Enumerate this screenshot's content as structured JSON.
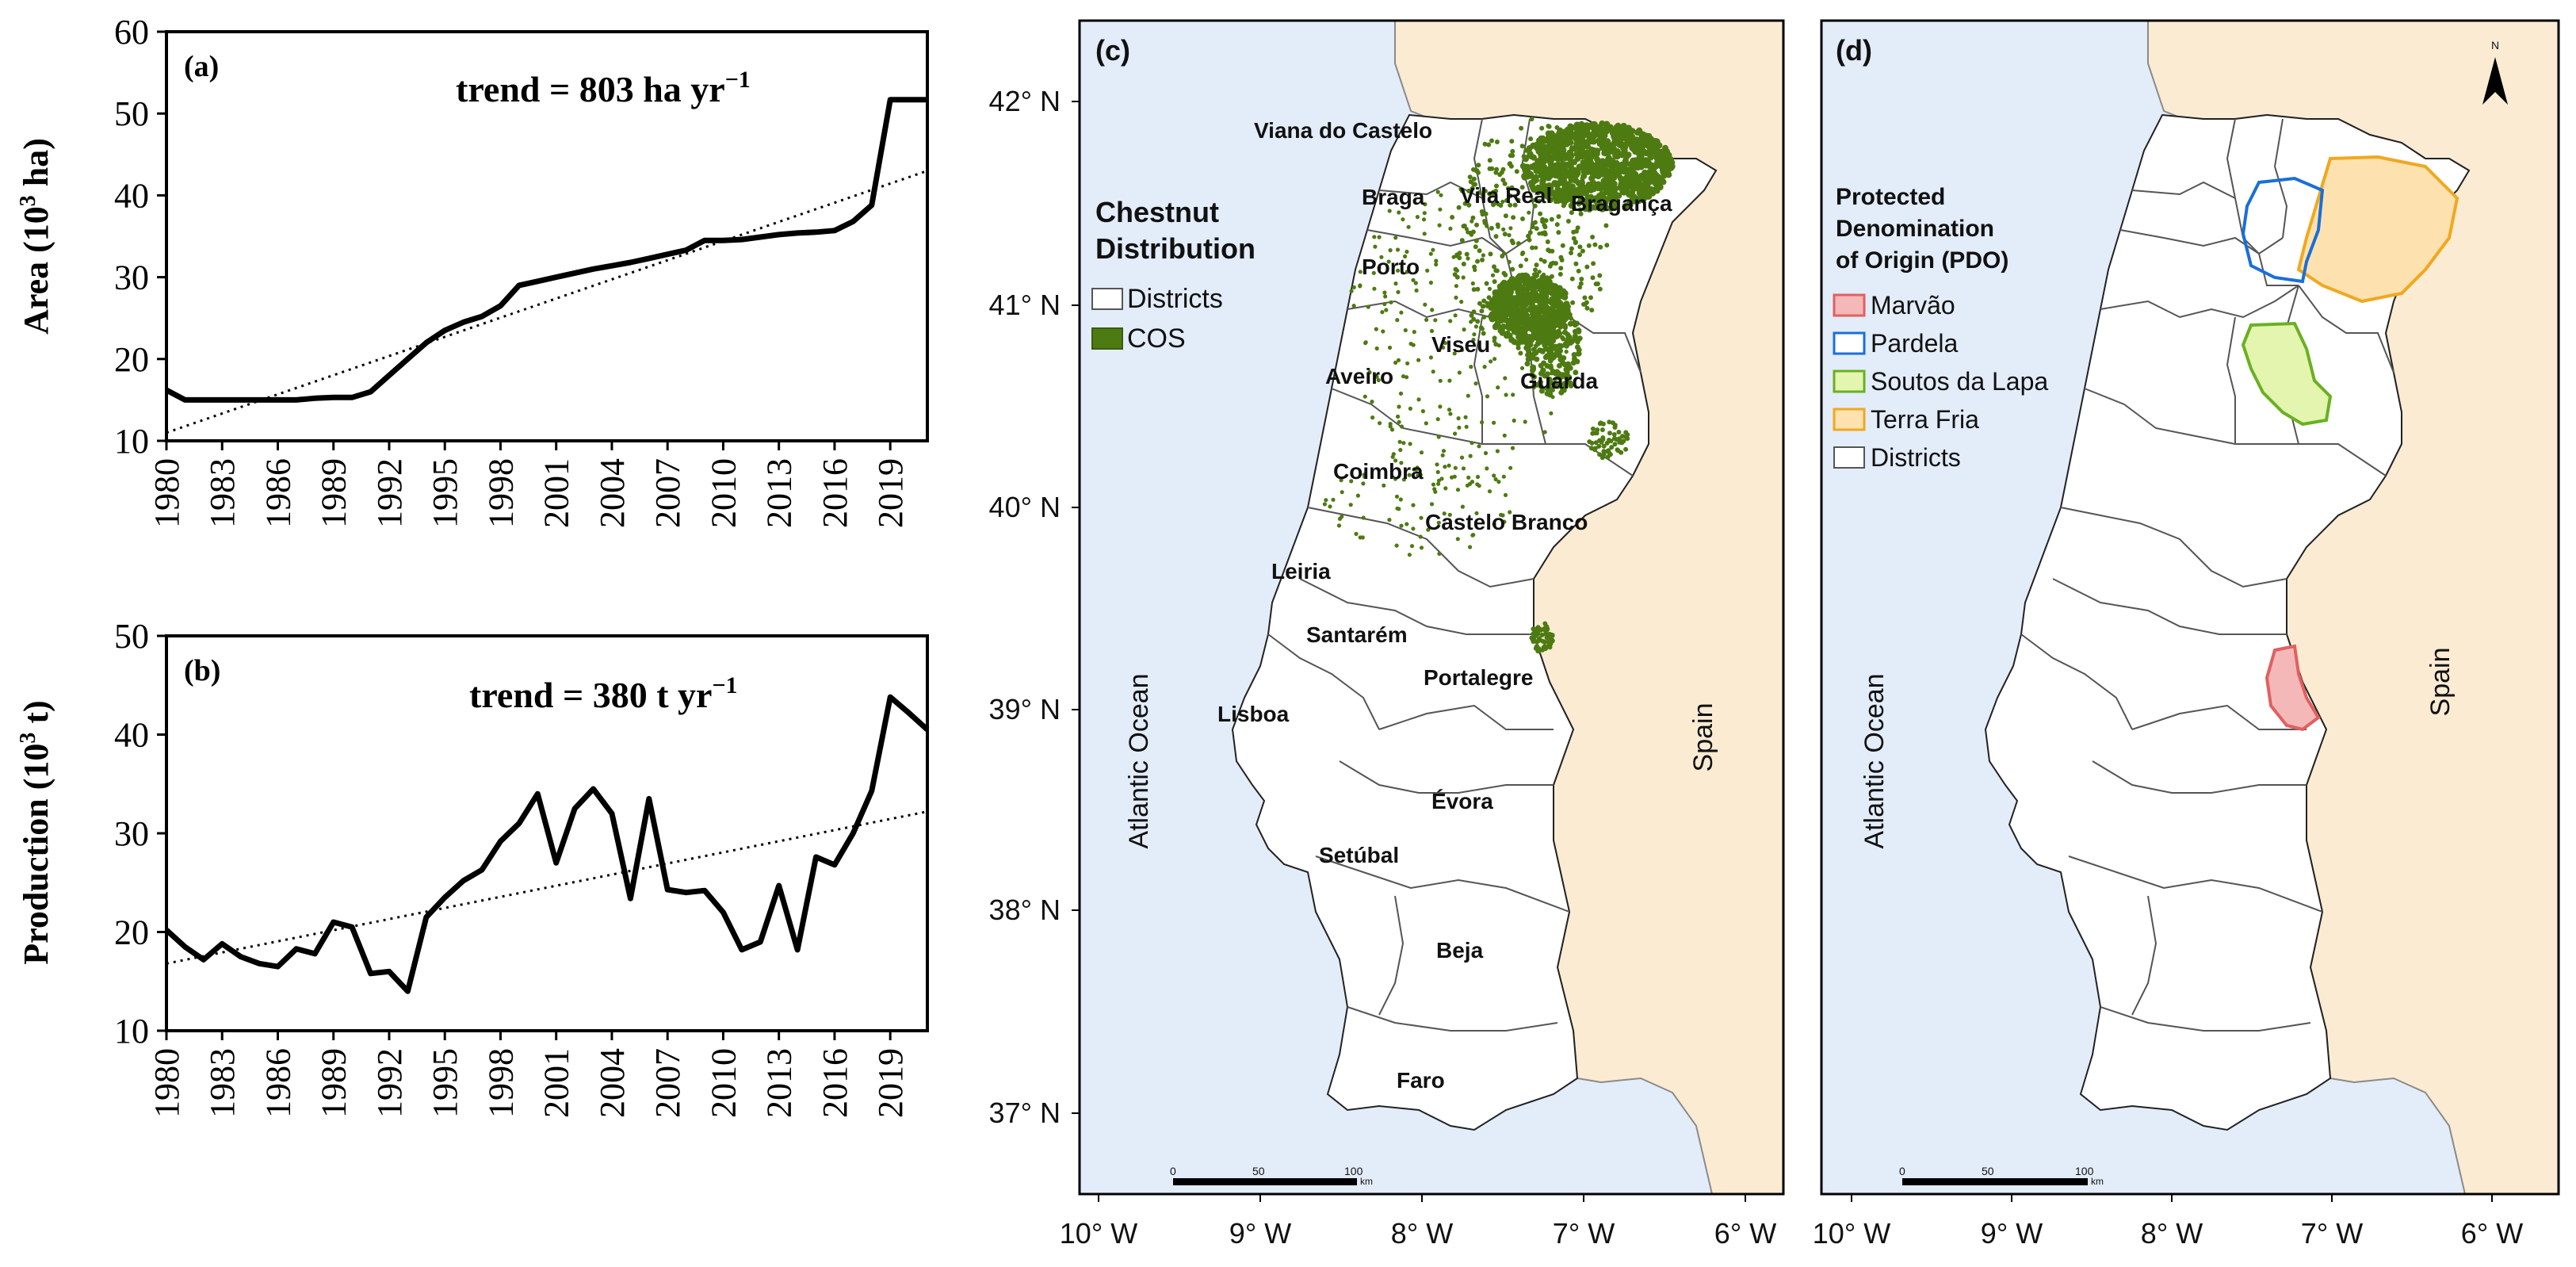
{
  "chart_data": [
    {
      "type": "line",
      "panel": "(a)",
      "annotation": "trend = 803 ha yr",
      "annotation_sup": "−1",
      "ylabel": "Area (10",
      "ylabel_sup": "3",
      "ylabel_end": " ha)",
      "ylim": [
        10,
        60
      ],
      "yticks": [
        10,
        20,
        30,
        40,
        50,
        60
      ],
      "xlim": [
        1980,
        2021
      ],
      "xticks": [
        1980,
        1983,
        1986,
        1989,
        1992,
        1995,
        1998,
        2001,
        2004,
        2007,
        2010,
        2013,
        2016,
        2019
      ],
      "series": [
        {
          "name": "Area",
          "x": [
            1980,
            1981,
            1982,
            1983,
            1984,
            1985,
            1986,
            1987,
            1988,
            1989,
            1990,
            1991,
            1992,
            1993,
            1994,
            1995,
            1996,
            1997,
            1998,
            1999,
            2000,
            2001,
            2002,
            2003,
            2004,
            2005,
            2006,
            2007,
            2008,
            2009,
            2010,
            2011,
            2012,
            2013,
            2014,
            2015,
            2016,
            2017,
            2018,
            2019,
            2020,
            2021
          ],
          "values": [
            16.2,
            15,
            15,
            15,
            15,
            15,
            15,
            15,
            15.2,
            15.3,
            15.3,
            16,
            18,
            20,
            22,
            23.5,
            24.5,
            25.2,
            26.5,
            29,
            29.5,
            30,
            30.5,
            31,
            31.4,
            31.8,
            32.3,
            32.8,
            33.3,
            34.5,
            34.5,
            34.6,
            34.9,
            35.2,
            35.4,
            35.5,
            35.7,
            36.8,
            38.8,
            51.7,
            51.7,
            51.7
          ]
        },
        {
          "name": "Trend",
          "style": "dotted",
          "x": [
            1980,
            2021
          ],
          "values": [
            11.0,
            43.0
          ]
        }
      ]
    },
    {
      "type": "line",
      "panel": "(b)",
      "annotation": "trend = 380 t yr",
      "annotation_sup": "−1",
      "ylabel": "Production (10",
      "ylabel_sup": "3",
      "ylabel_end": " t)",
      "ylim": [
        10,
        50
      ],
      "yticks": [
        10,
        20,
        30,
        40,
        50
      ],
      "xlim": [
        1980,
        2021
      ],
      "xticks": [
        1980,
        1983,
        1986,
        1989,
        1992,
        1995,
        1998,
        2001,
        2004,
        2007,
        2010,
        2013,
        2016,
        2019
      ],
      "series": [
        {
          "name": "Production",
          "x": [
            1980,
            1981,
            1982,
            1983,
            1984,
            1985,
            1986,
            1987,
            1988,
            1989,
            1990,
            1991,
            1992,
            1993,
            1994,
            1995,
            1996,
            1997,
            1998,
            1999,
            2000,
            2001,
            2002,
            2003,
            2004,
            2005,
            2006,
            2007,
            2008,
            2009,
            2010,
            2011,
            2012,
            2013,
            2014,
            2015,
            2016,
            2017,
            2018,
            2019,
            2020,
            2021
          ],
          "values": [
            20.2,
            18.5,
            17.2,
            18.8,
            17.5,
            16.8,
            16.5,
            18.3,
            17.8,
            21,
            20.5,
            15.8,
            16,
            14,
            21.5,
            23.5,
            25.2,
            26.3,
            29.2,
            31,
            34,
            27,
            32.5,
            34.5,
            32,
            23.4,
            33.5,
            24.3,
            24,
            24.2,
            22,
            18.2,
            19,
            24.7,
            18.2,
            27.6,
            26.8,
            30,
            34.3,
            43.8,
            42.2,
            40.5
          ]
        },
        {
          "name": "Trend",
          "style": "dotted",
          "x": [
            1980,
            2021
          ],
          "values": [
            16.8,
            32.2
          ]
        }
      ]
    }
  ],
  "maps": {
    "c": {
      "panel": "(c)",
      "legend_title_1": "Chestnut",
      "legend_title_2": "Distribution",
      "legend_items": [
        {
          "label": "Districts",
          "fill": "#ffffff",
          "stroke": "#555555"
        },
        {
          "label": "COS",
          "fill": "#4e7a12",
          "stroke": "#3a5c0c"
        }
      ],
      "lat_labels": [
        "42° N",
        "41° N",
        "40° N",
        "39° N",
        "38° N",
        "37° N"
      ],
      "lon_labels": [
        "10° W",
        "9° W",
        "8° W",
        "7° W",
        "6° W"
      ],
      "ocean_label": "Atlantic Ocean",
      "country_label": "Spain",
      "districts": [
        "Viana do Castelo",
        "Braga",
        "Vila Real",
        "Bragança",
        "Porto",
        "Viseu",
        "Aveiro",
        "Guarda",
        "Coimbra",
        "Castelo Branco",
        "Leiria",
        "Santarém",
        "Portalegre",
        "Lisboa",
        "Évora",
        "Setúbal",
        "Beja",
        "Faro"
      ],
      "scale_labels": [
        "0",
        "50",
        "100"
      ],
      "scale_unit": "km"
    },
    "d": {
      "panel": "(d)",
      "legend_title_1": "Protected",
      "legend_title_2": "Denomination",
      "legend_title_3": "of Origin (PDO)",
      "legend_items": [
        {
          "label": "Marvão",
          "fill": "#f5b8b8",
          "stroke": "#e06060"
        },
        {
          "label": "Pardela",
          "fill": "#ffffff",
          "stroke": "#1a6fd8"
        },
        {
          "label": "Soutos da Lapa",
          "fill": "#e4f5b0",
          "stroke": "#6ab023"
        },
        {
          "label": "Terra Fria",
          "fill": "#fde2b0",
          "stroke": "#f0a820"
        },
        {
          "label": "Districts",
          "fill": "#ffffff",
          "stroke": "#555555"
        }
      ],
      "lon_labels": [
        "10° W",
        "9° W",
        "8° W",
        "7° W",
        "6° W"
      ],
      "ocean_label": "Atlantic Ocean",
      "country_label": "Spain",
      "north_label": "N",
      "scale_labels": [
        "0",
        "50",
        "100"
      ],
      "scale_unit": "km"
    }
  },
  "colors": {
    "ocean": "#e3ecf9",
    "spain": "#fbebd3",
    "cos": "#4e7a12"
  }
}
